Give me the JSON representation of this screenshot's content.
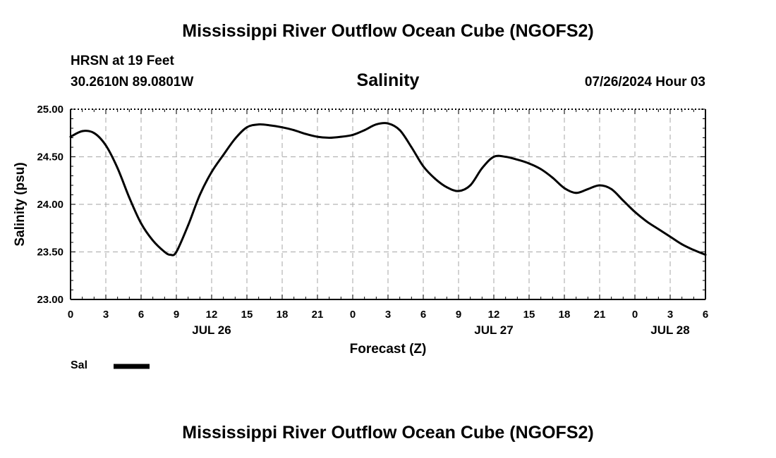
{
  "header": {
    "title": "Mississippi River Outflow Ocean Cube (NGOFS2)",
    "station": "HRSN at 19 Feet",
    "coords": "30.2610N  89.0801W",
    "variable": "Salinity",
    "datetime": "07/26/2024 Hour 03"
  },
  "legend": {
    "label": "Sal",
    "color": "#000000"
  },
  "footer": {
    "title": "Mississippi River Outflow Ocean Cube (NGOFS2)"
  },
  "chart_data": {
    "type": "line",
    "title": "Salinity",
    "xlabel": "Forecast (Z)",
    "ylabel": "Salinity (psu)",
    "xlim": [
      0,
      54
    ],
    "ylim": [
      23.0,
      25.0
    ],
    "grid": true,
    "legend_position": "bottom-left",
    "y_ticks": [
      23.0,
      23.5,
      24.0,
      24.5,
      25.0
    ],
    "y_tick_labels": [
      "23.00",
      "23.50",
      "24.00",
      "24.50",
      "25.00"
    ],
    "x_ticks": [
      0,
      3,
      6,
      9,
      12,
      15,
      18,
      21,
      24,
      27,
      30,
      33,
      36,
      39,
      42,
      45,
      48,
      51,
      54
    ],
    "x_tick_labels": [
      "0",
      "3",
      "6",
      "9",
      "12",
      "15",
      "18",
      "21",
      "0",
      "3",
      "6",
      "9",
      "12",
      "15",
      "18",
      "21",
      "0",
      "3",
      "6"
    ],
    "date_labels": [
      {
        "x": 12,
        "label": "JUL 26"
      },
      {
        "x": 36,
        "label": "JUL 27"
      },
      {
        "x": 51,
        "label": "JUL 28"
      }
    ],
    "series": [
      {
        "name": "Sal",
        "x": [
          0,
          1,
          2,
          3,
          4,
          5,
          6,
          7,
          8,
          8.5,
          9,
          10,
          11,
          12,
          13,
          14,
          15,
          16,
          17,
          18,
          19,
          20,
          21,
          22,
          23,
          24,
          25,
          26,
          27,
          28,
          29,
          30,
          31,
          32,
          33,
          34,
          35,
          36,
          37,
          38,
          39,
          40,
          41,
          42,
          43,
          44,
          45,
          46,
          47,
          48,
          49,
          50,
          51,
          52,
          53,
          54
        ],
        "values": [
          24.71,
          24.77,
          24.75,
          24.62,
          24.38,
          24.07,
          23.8,
          23.62,
          23.5,
          23.47,
          23.5,
          23.78,
          24.1,
          24.34,
          24.52,
          24.69,
          24.81,
          24.84,
          24.83,
          24.81,
          24.78,
          24.74,
          24.71,
          24.7,
          24.71,
          24.73,
          24.78,
          24.84,
          24.85,
          24.78,
          24.6,
          24.4,
          24.27,
          24.18,
          24.14,
          24.2,
          24.38,
          24.5,
          24.5,
          24.47,
          24.43,
          24.37,
          24.28,
          24.17,
          24.12,
          24.16,
          24.2,
          24.16,
          24.04,
          23.92,
          23.82,
          23.74,
          23.66,
          23.58,
          23.52,
          23.47
        ]
      }
    ]
  }
}
